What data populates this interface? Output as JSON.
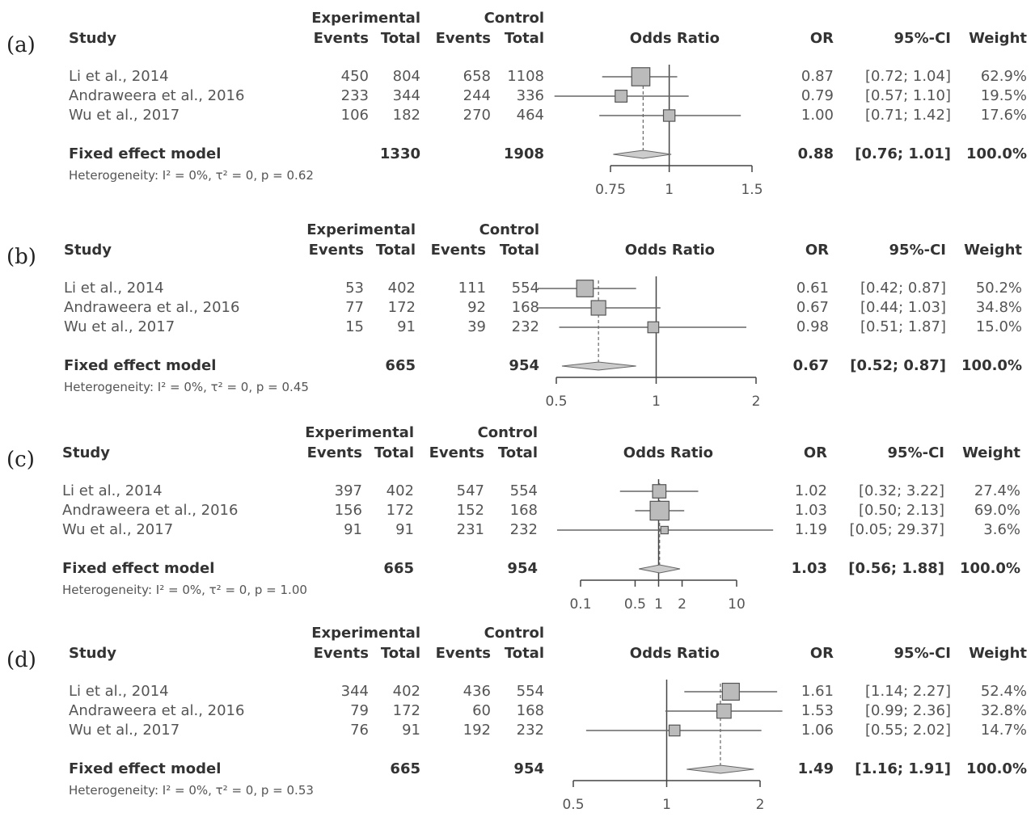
{
  "chart_data": [
    {
      "type": "forest",
      "panel_label": "(a)",
      "headers": {
        "study": "Study",
        "experimental": "Experimental",
        "control": "Control",
        "events": "Events",
        "total": "Total",
        "plot": "Odds Ratio",
        "or": "OR",
        "ci": "95%-CI",
        "weight": "Weight"
      },
      "studies": [
        {
          "name": "Li  et al., 2014",
          "exp_events": "450",
          "exp_total": "804",
          "ctrl_events": "658",
          "ctrl_total": "1108",
          "or": 0.87,
          "ci_low": 0.72,
          "ci_high": 1.04,
          "or_text": "0.87",
          "ci_text": "[0.72; 1.04]",
          "weight": "62.9%"
        },
        {
          "name": "Andraweera et al., 2016",
          "exp_events": "233",
          "exp_total": "344",
          "ctrl_events": "244",
          "ctrl_total": "336",
          "or": 0.79,
          "ci_low": 0.57,
          "ci_high": 1.1,
          "or_text": "0.79",
          "ci_text": "[0.57; 1.10]",
          "weight": "19.5%"
        },
        {
          "name": "Wu et al., 2017",
          "exp_events": "106",
          "exp_total": "182",
          "ctrl_events": "270",
          "ctrl_total": "464",
          "or": 1.0,
          "ci_low": 0.71,
          "ci_high": 1.42,
          "or_text": "1.00",
          "ci_text": "[0.71; 1.42]",
          "weight": "17.6%"
        }
      ],
      "pooled": {
        "name": "Fixed effect model",
        "exp_total": "1330",
        "ctrl_total": "1908",
        "or": 0.88,
        "ci_low": 0.76,
        "ci_high": 1.01,
        "or_text": "0.88",
        "ci_text": "[0.76; 1.01]",
        "weight": "100.0%"
      },
      "heterogeneity": "Heterogeneity: I² = 0%, τ² = 0, p = 0.62",
      "x_scale": "log",
      "xlim": [
        0.75,
        1.5
      ],
      "ticks": [
        0.75,
        1,
        1.5
      ],
      "tick_labels": [
        "0.75",
        "1",
        "1.5"
      ]
    },
    {
      "type": "forest",
      "panel_label": "(b)",
      "headers": {
        "study": "Study",
        "experimental": "Experimental",
        "control": "Control",
        "events": "Events",
        "total": "Total",
        "plot": "Odds Ratio",
        "or": "OR",
        "ci": "95%-CI",
        "weight": "Weight"
      },
      "studies": [
        {
          "name": "Li et al., 2014",
          "exp_events": "53",
          "exp_total": "402",
          "ctrl_events": "111",
          "ctrl_total": "554",
          "or": 0.61,
          "ci_low": 0.42,
          "ci_high": 0.87,
          "or_text": "0.61",
          "ci_text": "[0.42; 0.87]",
          "weight": "50.2%"
        },
        {
          "name": "Andraweera et al., 2016",
          "exp_events": "77",
          "exp_total": "172",
          "ctrl_events": "92",
          "ctrl_total": "168",
          "or": 0.67,
          "ci_low": 0.44,
          "ci_high": 1.03,
          "or_text": "0.67",
          "ci_text": "[0.44; 1.03]",
          "weight": "34.8%"
        },
        {
          "name": "Wu et al., 2017",
          "exp_events": "15",
          "exp_total": "91",
          "ctrl_events": "39",
          "ctrl_total": "232",
          "or": 0.98,
          "ci_low": 0.51,
          "ci_high": 1.87,
          "or_text": "0.98",
          "ci_text": "[0.51; 1.87]",
          "weight": "15.0%"
        }
      ],
      "pooled": {
        "name": "Fixed effect model",
        "exp_total": "665",
        "ctrl_total": "954",
        "or": 0.67,
        "ci_low": 0.52,
        "ci_high": 0.87,
        "or_text": "0.67",
        "ci_text": "[0.52; 0.87]",
        "weight": "100.0%"
      },
      "heterogeneity": "Heterogeneity: I² = 0%, τ² = 0, p = 0.45",
      "x_scale": "log",
      "xlim": [
        0.5,
        2
      ],
      "ticks": [
        0.5,
        1,
        2
      ],
      "tick_labels": [
        "0.5",
        "1",
        "2"
      ]
    },
    {
      "type": "forest",
      "panel_label": "(c)",
      "headers": {
        "study": "Study",
        "experimental": "Experimental",
        "control": "Control",
        "events": "Events",
        "total": "Total",
        "plot": "Odds Ratio",
        "or": "OR",
        "ci": "95%-CI",
        "weight": "Weight"
      },
      "studies": [
        {
          "name": "Li et al., 2014",
          "exp_events": "397",
          "exp_total": "402",
          "ctrl_events": "547",
          "ctrl_total": "554",
          "or": 1.02,
          "ci_low": 0.32,
          "ci_high": 3.22,
          "or_text": "1.02",
          "ci_text": "[0.32; 3.22]",
          "weight": "27.4%"
        },
        {
          "name": "Andraweera et al., 2016",
          "exp_events": "156",
          "exp_total": "172",
          "ctrl_events": "152",
          "ctrl_total": "168",
          "or": 1.03,
          "ci_low": 0.5,
          "ci_high": 2.13,
          "or_text": "1.03",
          "ci_text": "[0.50; 2.13]",
          "weight": "69.0%"
        },
        {
          "name": "Wu et al., 2017",
          "exp_events": "91",
          "exp_total": "91",
          "ctrl_events": "231",
          "ctrl_total": "232",
          "or": 1.19,
          "ci_low": 0.05,
          "ci_high": 29.37,
          "or_text": "1.19",
          "ci_text": "[0.05; 29.37]",
          "weight": "3.6%"
        }
      ],
      "pooled": {
        "name": "Fixed effect model",
        "exp_total": "665",
        "ctrl_total": "954",
        "or": 1.03,
        "ci_low": 0.56,
        "ci_high": 1.88,
        "or_text": "1.03",
        "ci_text": "[0.56;  1.88]",
        "weight": "100.0%"
      },
      "heterogeneity": "Heterogeneity: I² = 0%, τ² = 0, p = 1.00",
      "x_scale": "log",
      "xlim": [
        0.1,
        10
      ],
      "ticks": [
        0.1,
        0.5,
        1,
        2,
        10
      ],
      "tick_labels": [
        "0.1",
        "0.5",
        "1",
        "2",
        "10"
      ]
    },
    {
      "type": "forest",
      "panel_label": "(d)",
      "headers": {
        "study": "Study",
        "experimental": "Experimental",
        "control": "Control",
        "events": "Events",
        "total": "Total",
        "plot": "Odds Ratio",
        "or": "OR",
        "ci": "95%-CI",
        "weight": "Weight"
      },
      "studies": [
        {
          "name": "Li et al., 2014",
          "exp_events": "344",
          "exp_total": "402",
          "ctrl_events": "436",
          "ctrl_total": "554",
          "or": 1.61,
          "ci_low": 1.14,
          "ci_high": 2.27,
          "or_text": "1.61",
          "ci_text": "[1.14; 2.27]",
          "weight": "52.4%"
        },
        {
          "name": "Andraweera et al., 2016",
          "exp_events": "79",
          "exp_total": "172",
          "ctrl_events": "60",
          "ctrl_total": "168",
          "or": 1.53,
          "ci_low": 0.99,
          "ci_high": 2.36,
          "or_text": "1.53",
          "ci_text": "[0.99; 2.36]",
          "weight": "32.8%"
        },
        {
          "name": "Wu et al., 2017",
          "exp_events": "76",
          "exp_total": "91",
          "ctrl_events": "192",
          "ctrl_total": "232",
          "or": 1.06,
          "ci_low": 0.55,
          "ci_high": 2.02,
          "or_text": "1.06",
          "ci_text": "[0.55; 2.02]",
          "weight": "14.7%"
        }
      ],
      "pooled": {
        "name": "Fixed effect model",
        "exp_total": "665",
        "ctrl_total": "954",
        "or": 1.49,
        "ci_low": 1.16,
        "ci_high": 1.91,
        "or_text": "1.49",
        "ci_text": "[1.16; 1.91]",
        "weight": "100.0%"
      },
      "heterogeneity": "Heterogeneity: I² = 0%, τ² = 0, p = 0.53",
      "x_scale": "log",
      "xlim": [
        0.5,
        2
      ],
      "ticks": [
        0.5,
        1,
        2
      ],
      "tick_labels": [
        "0.5",
        "1",
        "2"
      ]
    }
  ]
}
